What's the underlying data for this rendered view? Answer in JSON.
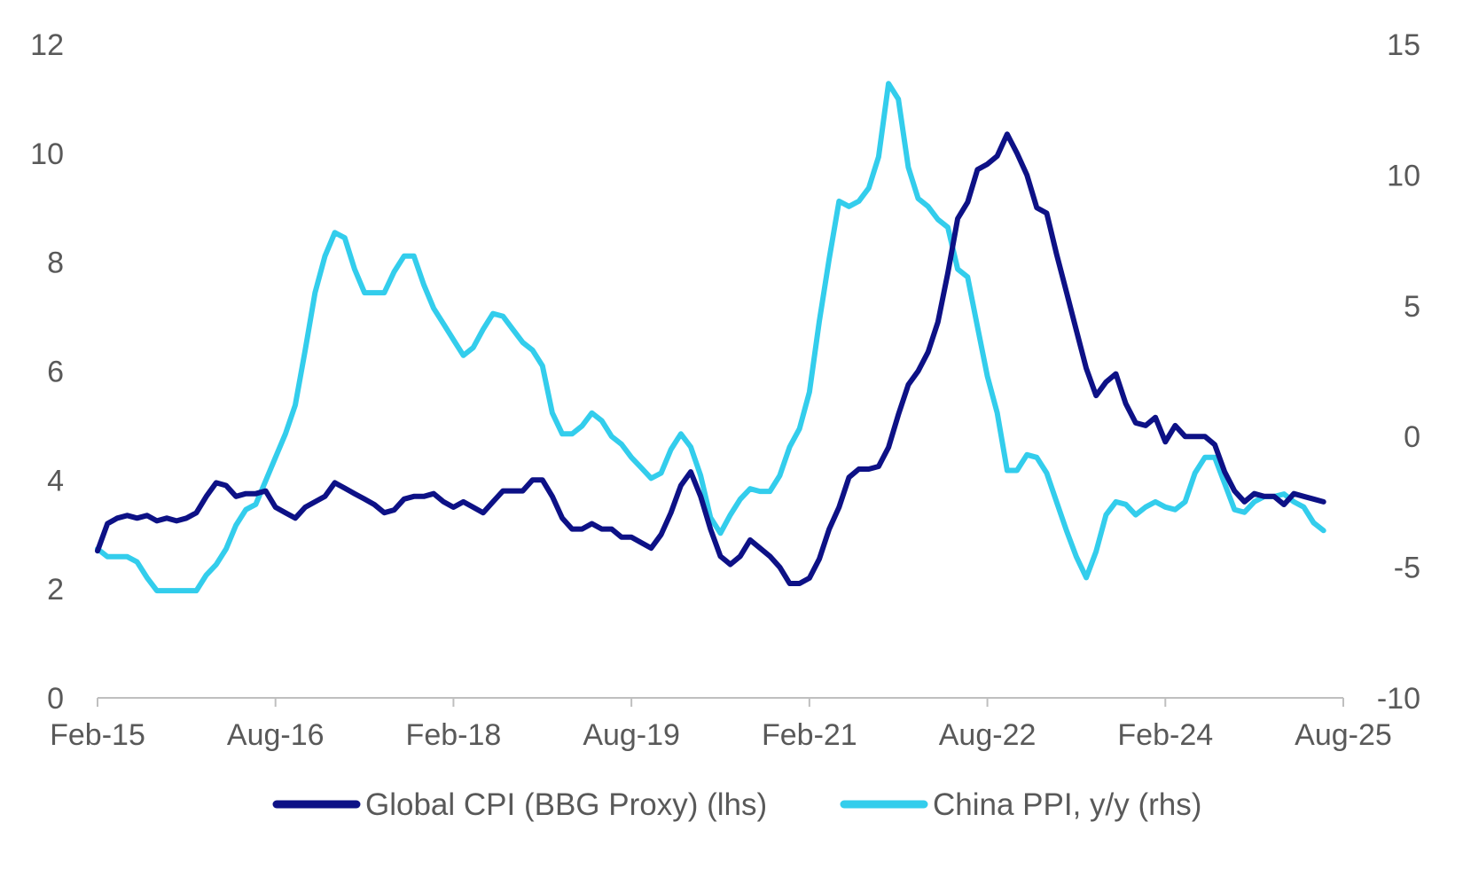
{
  "chart_data": {
    "type": "line",
    "title": "",
    "x_labels": [
      "Feb-15",
      "Aug-16",
      "Feb-18",
      "Aug-19",
      "Feb-21",
      "Aug-22",
      "Feb-24",
      "Aug-25"
    ],
    "left_axis": {
      "label": "",
      "ylim": [
        0,
        12
      ],
      "ticks": [
        "0",
        "2",
        "4",
        "6",
        "8",
        "10",
        "12"
      ]
    },
    "right_axis": {
      "label": "",
      "ylim": [
        -10,
        15
      ],
      "ticks": [
        "-10",
        "-5",
        "0",
        "5",
        "10",
        "15"
      ]
    },
    "grid": false,
    "legend_position": "bottom",
    "series": [
      {
        "name": "Global CPI (BBG Proxy) (lhs)",
        "axis": "left",
        "color": "#0d1186",
        "points": [
          [
            "2015-02",
            2.7
          ],
          [
            "2015-03",
            3.2
          ],
          [
            "2015-04",
            3.3
          ],
          [
            "2015-05",
            3.35
          ],
          [
            "2015-06",
            3.3
          ],
          [
            "2015-07",
            3.35
          ],
          [
            "2015-08",
            3.25
          ],
          [
            "2015-09",
            3.3
          ],
          [
            "2015-10",
            3.25
          ],
          [
            "2015-11",
            3.3
          ],
          [
            "2015-12",
            3.4
          ],
          [
            "2016-01",
            3.7
          ],
          [
            "2016-02",
            3.95
          ],
          [
            "2016-03",
            3.9
          ],
          [
            "2016-04",
            3.7
          ],
          [
            "2016-05",
            3.75
          ],
          [
            "2016-06",
            3.75
          ],
          [
            "2016-07",
            3.8
          ],
          [
            "2016-08",
            3.5
          ],
          [
            "2016-09",
            3.4
          ],
          [
            "2016-10",
            3.3
          ],
          [
            "2016-11",
            3.5
          ],
          [
            "2016-12",
            3.6
          ],
          [
            "2017-01",
            3.7
          ],
          [
            "2017-02",
            3.95
          ],
          [
            "2017-03",
            3.85
          ],
          [
            "2017-04",
            3.75
          ],
          [
            "2017-05",
            3.65
          ],
          [
            "2017-06",
            3.55
          ],
          [
            "2017-07",
            3.4
          ],
          [
            "2017-08",
            3.45
          ],
          [
            "2017-09",
            3.65
          ],
          [
            "2017-10",
            3.7
          ],
          [
            "2017-11",
            3.7
          ],
          [
            "2017-12",
            3.75
          ],
          [
            "2018-01",
            3.6
          ],
          [
            "2018-02",
            3.5
          ],
          [
            "2018-03",
            3.6
          ],
          [
            "2018-04",
            3.5
          ],
          [
            "2018-05",
            3.4
          ],
          [
            "2018-06",
            3.6
          ],
          [
            "2018-07",
            3.8
          ],
          [
            "2018-08",
            3.8
          ],
          [
            "2018-09",
            3.8
          ],
          [
            "2018-10",
            4.0
          ],
          [
            "2018-11",
            4.0
          ],
          [
            "2018-12",
            3.7
          ],
          [
            "2019-01",
            3.3
          ],
          [
            "2019-02",
            3.1
          ],
          [
            "2019-03",
            3.1
          ],
          [
            "2019-04",
            3.2
          ],
          [
            "2019-05",
            3.1
          ],
          [
            "2019-06",
            3.1
          ],
          [
            "2019-07",
            2.95
          ],
          [
            "2019-08",
            2.95
          ],
          [
            "2019-09",
            2.85
          ],
          [
            "2019-10",
            2.75
          ],
          [
            "2019-11",
            3.0
          ],
          [
            "2019-12",
            3.4
          ],
          [
            "2020-01",
            3.9
          ],
          [
            "2020-02",
            4.15
          ],
          [
            "2020-03",
            3.7
          ],
          [
            "2020-04",
            3.1
          ],
          [
            "2020-05",
            2.6
          ],
          [
            "2020-06",
            2.45
          ],
          [
            "2020-07",
            2.6
          ],
          [
            "2020-08",
            2.9
          ],
          [
            "2020-09",
            2.75
          ],
          [
            "2020-10",
            2.6
          ],
          [
            "2020-11",
            2.4
          ],
          [
            "2020-12",
            2.1
          ],
          [
            "2021-01",
            2.1
          ],
          [
            "2021-02",
            2.2
          ],
          [
            "2021-03",
            2.55
          ],
          [
            "2021-04",
            3.1
          ],
          [
            "2021-05",
            3.5
          ],
          [
            "2021-06",
            4.05
          ],
          [
            "2021-07",
            4.2
          ],
          [
            "2021-08",
            4.2
          ],
          [
            "2021-09",
            4.25
          ],
          [
            "2021-10",
            4.6
          ],
          [
            "2021-11",
            5.2
          ],
          [
            "2021-12",
            5.75
          ],
          [
            "2022-01",
            6.0
          ],
          [
            "2022-02",
            6.35
          ],
          [
            "2022-03",
            6.9
          ],
          [
            "2022-04",
            7.8
          ],
          [
            "2022-05",
            8.8
          ],
          [
            "2022-06",
            9.1
          ],
          [
            "2022-07",
            9.7
          ],
          [
            "2022-08",
            9.8
          ],
          [
            "2022-09",
            9.95
          ],
          [
            "2022-10",
            10.35
          ],
          [
            "2022-11",
            10.0
          ],
          [
            "2022-12",
            9.6
          ],
          [
            "2023-01",
            9.0
          ],
          [
            "2023-02",
            8.9
          ],
          [
            "2023-03",
            8.15
          ],
          [
            "2023-04",
            7.45
          ],
          [
            "2023-05",
            6.75
          ],
          [
            "2023-06",
            6.05
          ],
          [
            "2023-07",
            5.55
          ],
          [
            "2023-08",
            5.8
          ],
          [
            "2023-09",
            5.95
          ],
          [
            "2023-10",
            5.4
          ],
          [
            "2023-11",
            5.05
          ],
          [
            "2023-12",
            5.0
          ],
          [
            "2024-01",
            5.15
          ],
          [
            "2024-02",
            4.7
          ],
          [
            "2024-03",
            5.0
          ],
          [
            "2024-04",
            4.8
          ],
          [
            "2024-05",
            4.8
          ],
          [
            "2024-06",
            4.8
          ],
          [
            "2024-07",
            4.65
          ],
          [
            "2024-08",
            4.15
          ],
          [
            "2024-09",
            3.8
          ],
          [
            "2024-10",
            3.6
          ],
          [
            "2024-11",
            3.75
          ],
          [
            "2024-12",
            3.7
          ],
          [
            "2025-01",
            3.7
          ],
          [
            "2025-02",
            3.55
          ],
          [
            "2025-03",
            3.75
          ],
          [
            "2025-04",
            3.7
          ],
          [
            "2025-05",
            3.65
          ],
          [
            "2025-06",
            3.6
          ]
        ]
      },
      {
        "name": "China PPI, y/y (rhs)",
        "axis": "right",
        "color": "#33cdec",
        "points": [
          [
            "2015-02",
            -4.3
          ],
          [
            "2015-03",
            -4.6
          ],
          [
            "2015-04",
            -4.6
          ],
          [
            "2015-05",
            -4.6
          ],
          [
            "2015-06",
            -4.8
          ],
          [
            "2015-07",
            -5.4
          ],
          [
            "2015-08",
            -5.9
          ],
          [
            "2015-09",
            -5.9
          ],
          [
            "2015-10",
            -5.9
          ],
          [
            "2015-11",
            -5.9
          ],
          [
            "2015-12",
            -5.9
          ],
          [
            "2016-01",
            -5.3
          ],
          [
            "2016-02",
            -4.9
          ],
          [
            "2016-03",
            -4.3
          ],
          [
            "2016-04",
            -3.4
          ],
          [
            "2016-05",
            -2.8
          ],
          [
            "2016-06",
            -2.6
          ],
          [
            "2016-07",
            -1.7
          ],
          [
            "2016-08",
            -0.8
          ],
          [
            "2016-09",
            0.1
          ],
          [
            "2016-10",
            1.2
          ],
          [
            "2016-11",
            3.3
          ],
          [
            "2016-12",
            5.5
          ],
          [
            "2017-01",
            6.9
          ],
          [
            "2017-02",
            7.8
          ],
          [
            "2017-03",
            7.6
          ],
          [
            "2017-04",
            6.4
          ],
          [
            "2017-05",
            5.5
          ],
          [
            "2017-06",
            5.5
          ],
          [
            "2017-07",
            5.5
          ],
          [
            "2017-08",
            6.3
          ],
          [
            "2017-09",
            6.9
          ],
          [
            "2017-10",
            6.9
          ],
          [
            "2017-11",
            5.8
          ],
          [
            "2017-12",
            4.9
          ],
          [
            "2018-01",
            4.3
          ],
          [
            "2018-02",
            3.7
          ],
          [
            "2018-03",
            3.1
          ],
          [
            "2018-04",
            3.4
          ],
          [
            "2018-05",
            4.1
          ],
          [
            "2018-06",
            4.7
          ],
          [
            "2018-07",
            4.6
          ],
          [
            "2018-08",
            4.1
          ],
          [
            "2018-09",
            3.6
          ],
          [
            "2018-10",
            3.3
          ],
          [
            "2018-11",
            2.7
          ],
          [
            "2018-12",
            0.9
          ],
          [
            "2019-01",
            0.1
          ],
          [
            "2019-02",
            0.1
          ],
          [
            "2019-03",
            0.4
          ],
          [
            "2019-04",
            0.9
          ],
          [
            "2019-05",
            0.6
          ],
          [
            "2019-06",
            0.0
          ],
          [
            "2019-07",
            -0.3
          ],
          [
            "2019-08",
            -0.8
          ],
          [
            "2019-09",
            -1.2
          ],
          [
            "2019-10",
            -1.6
          ],
          [
            "2019-11",
            -1.4
          ],
          [
            "2019-12",
            -0.5
          ],
          [
            "2020-01",
            0.1
          ],
          [
            "2020-02",
            -0.4
          ],
          [
            "2020-03",
            -1.5
          ],
          [
            "2020-04",
            -3.1
          ],
          [
            "2020-05",
            -3.7
          ],
          [
            "2020-06",
            -3.0
          ],
          [
            "2020-07",
            -2.4
          ],
          [
            "2020-08",
            -2.0
          ],
          [
            "2020-09",
            -2.1
          ],
          [
            "2020-10",
            -2.1
          ],
          [
            "2020-11",
            -1.5
          ],
          [
            "2020-12",
            -0.4
          ],
          [
            "2021-01",
            0.3
          ],
          [
            "2021-02",
            1.7
          ],
          [
            "2021-03",
            4.4
          ],
          [
            "2021-04",
            6.8
          ],
          [
            "2021-05",
            9.0
          ],
          [
            "2021-06",
            8.8
          ],
          [
            "2021-07",
            9.0
          ],
          [
            "2021-08",
            9.5
          ],
          [
            "2021-09",
            10.7
          ],
          [
            "2021-10",
            13.5
          ],
          [
            "2021-11",
            12.9
          ],
          [
            "2021-12",
            10.3
          ],
          [
            "2022-01",
            9.1
          ],
          [
            "2022-02",
            8.8
          ],
          [
            "2022-03",
            8.3
          ],
          [
            "2022-04",
            8.0
          ],
          [
            "2022-05",
            6.4
          ],
          [
            "2022-06",
            6.1
          ],
          [
            "2022-07",
            4.2
          ],
          [
            "2022-08",
            2.3
          ],
          [
            "2022-09",
            0.9
          ],
          [
            "2022-10",
            -1.3
          ],
          [
            "2022-11",
            -1.3
          ],
          [
            "2022-12",
            -0.7
          ],
          [
            "2023-01",
            -0.8
          ],
          [
            "2023-02",
            -1.4
          ],
          [
            "2023-03",
            -2.5
          ],
          [
            "2023-04",
            -3.6
          ],
          [
            "2023-05",
            -4.6
          ],
          [
            "2023-06",
            -5.4
          ],
          [
            "2023-07",
            -4.4
          ],
          [
            "2023-08",
            -3.0
          ],
          [
            "2023-09",
            -2.5
          ],
          [
            "2023-10",
            -2.6
          ],
          [
            "2023-11",
            -3.0
          ],
          [
            "2023-12",
            -2.7
          ],
          [
            "2024-01",
            -2.5
          ],
          [
            "2024-02",
            -2.7
          ],
          [
            "2024-03",
            -2.8
          ],
          [
            "2024-04",
            -2.5
          ],
          [
            "2024-05",
            -1.4
          ],
          [
            "2024-06",
            -0.8
          ],
          [
            "2024-07",
            -0.8
          ],
          [
            "2024-08",
            -1.8
          ],
          [
            "2024-09",
            -2.8
          ],
          [
            "2024-10",
            -2.9
          ],
          [
            "2024-11",
            -2.5
          ],
          [
            "2024-12",
            -2.3
          ],
          [
            "2025-01",
            -2.3
          ],
          [
            "2025-02",
            -2.2
          ],
          [
            "2025-03",
            -2.5
          ],
          [
            "2025-04",
            -2.7
          ],
          [
            "2025-05",
            -3.3
          ],
          [
            "2025-06",
            -3.6
          ]
        ]
      }
    ]
  }
}
